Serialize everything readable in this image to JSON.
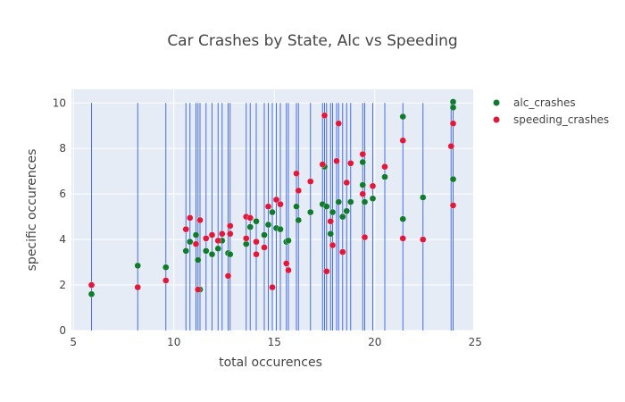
{
  "chart_data": {
    "type": "scatter",
    "title": "Car Crashes by State, Alc vs Speeding",
    "xlabel": "total occurences",
    "ylabel": "specific occurences",
    "xlim": [
      4.9,
      24.9
    ],
    "ylim": [
      0,
      10.6
    ],
    "xticks": [
      5,
      10,
      15,
      20,
      25
    ],
    "yticks": [
      0,
      2,
      4,
      6,
      8,
      10
    ],
    "grid": true,
    "legend_position": "top-right",
    "plot_bg": "#e5ecf6",
    "vline_color": "#4a6fe3",
    "series": [
      {
        "name": "alc_crashes",
        "color": "#117a2e",
        "points": [
          [
            5.9,
            1.6
          ],
          [
            8.2,
            2.85
          ],
          [
            9.6,
            2.78
          ],
          [
            10.6,
            3.5
          ],
          [
            10.8,
            3.9
          ],
          [
            11.1,
            4.2
          ],
          [
            11.2,
            3.1
          ],
          [
            11.3,
            1.8
          ],
          [
            11.6,
            3.5
          ],
          [
            11.9,
            3.35
          ],
          [
            12.2,
            3.6
          ],
          [
            12.4,
            3.95
          ],
          [
            12.7,
            3.4
          ],
          [
            12.8,
            3.35
          ],
          [
            13.6,
            3.8
          ],
          [
            13.8,
            4.55
          ],
          [
            14.1,
            4.8
          ],
          [
            14.5,
            4.2
          ],
          [
            14.7,
            4.65
          ],
          [
            14.9,
            5.2
          ],
          [
            15.1,
            4.5
          ],
          [
            15.3,
            4.45
          ],
          [
            15.6,
            3.9
          ],
          [
            15.7,
            3.95
          ],
          [
            16.1,
            5.45
          ],
          [
            16.2,
            4.85
          ],
          [
            16.8,
            5.2
          ],
          [
            17.4,
            5.55
          ],
          [
            17.5,
            7.2
          ],
          [
            17.6,
            5.45
          ],
          [
            17.8,
            4.25
          ],
          [
            17.9,
            5.2
          ],
          [
            18.2,
            5.65
          ],
          [
            18.4,
            5.0
          ],
          [
            18.6,
            5.25
          ],
          [
            18.8,
            5.65
          ],
          [
            19.4,
            7.4
          ],
          [
            19.4,
            6.4
          ],
          [
            19.5,
            5.65
          ],
          [
            19.9,
            5.8
          ],
          [
            20.5,
            6.75
          ],
          [
            21.4,
            9.4
          ],
          [
            21.4,
            4.9
          ],
          [
            22.4,
            5.85
          ],
          [
            23.9,
            6.65
          ],
          [
            23.9,
            10.05
          ],
          [
            23.9,
            9.8
          ]
        ]
      },
      {
        "name": "speeding_crashes",
        "color": "#e0183c",
        "points": [
          [
            5.9,
            2.0
          ],
          [
            8.2,
            1.9
          ],
          [
            9.6,
            2.2
          ],
          [
            10.6,
            4.45
          ],
          [
            10.8,
            4.95
          ],
          [
            11.1,
            3.8
          ],
          [
            11.2,
            1.8
          ],
          [
            11.3,
            4.85
          ],
          [
            11.6,
            4.05
          ],
          [
            11.9,
            4.2
          ],
          [
            12.2,
            3.95
          ],
          [
            12.4,
            4.25
          ],
          [
            12.7,
            2.4
          ],
          [
            12.8,
            4.6
          ],
          [
            12.8,
            4.25
          ],
          [
            13.6,
            4.05
          ],
          [
            13.6,
            5.0
          ],
          [
            13.8,
            4.95
          ],
          [
            14.1,
            3.9
          ],
          [
            14.1,
            3.35
          ],
          [
            14.5,
            3.65
          ],
          [
            14.7,
            5.45
          ],
          [
            14.9,
            1.9
          ],
          [
            15.1,
            5.75
          ],
          [
            15.3,
            5.55
          ],
          [
            15.6,
            2.95
          ],
          [
            15.7,
            2.65
          ],
          [
            16.1,
            6.9
          ],
          [
            16.2,
            6.15
          ],
          [
            16.8,
            6.55
          ],
          [
            17.4,
            7.3
          ],
          [
            17.5,
            9.45
          ],
          [
            17.6,
            2.6
          ],
          [
            17.8,
            4.8
          ],
          [
            17.9,
            3.75
          ],
          [
            18.1,
            7.45
          ],
          [
            18.2,
            9.1
          ],
          [
            18.4,
            3.45
          ],
          [
            18.6,
            6.5
          ],
          [
            18.8,
            7.35
          ],
          [
            19.4,
            7.75
          ],
          [
            19.4,
            6.0
          ],
          [
            19.5,
            4.1
          ],
          [
            19.9,
            6.35
          ],
          [
            20.5,
            7.2
          ],
          [
            21.4,
            8.35
          ],
          [
            21.4,
            4.05
          ],
          [
            22.4,
            4.0
          ],
          [
            23.8,
            8.1
          ],
          [
            23.9,
            9.1
          ],
          [
            23.9,
            5.5
          ]
        ]
      }
    ]
  }
}
